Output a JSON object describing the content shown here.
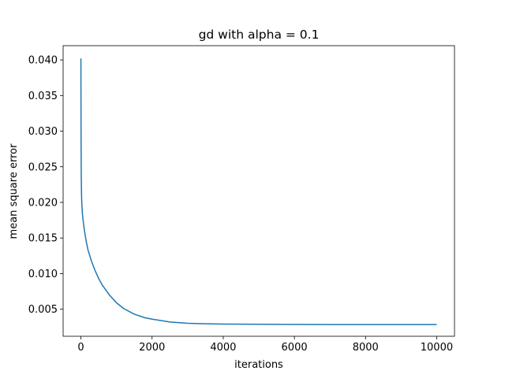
{
  "chart_data": {
    "type": "line",
    "title": "gd with alpha = 0.1",
    "xlabel": "iterations",
    "ylabel": "mean square error",
    "xlim": [
      -500,
      10500
    ],
    "ylim": [
      0.0012,
      0.042
    ],
    "xticks": [
      0,
      2000,
      4000,
      6000,
      8000,
      10000
    ],
    "xtick_labels": [
      "0",
      "2000",
      "4000",
      "6000",
      "8000",
      "10000"
    ],
    "yticks": [
      0.005,
      0.01,
      0.015,
      0.02,
      0.025,
      0.03,
      0.035,
      0.04
    ],
    "ytick_labels": [
      "0.005",
      "0.010",
      "0.015",
      "0.020",
      "0.025",
      "0.030",
      "0.035",
      "0.040"
    ],
    "grid": false,
    "series": [
      {
        "color": "#1f77b4",
        "x": [
          0,
          2,
          5,
          10,
          20,
          40,
          60,
          100,
          150,
          200,
          300,
          400,
          500,
          600,
          800,
          1000,
          1200,
          1500,
          1800,
          2000,
          2500,
          3000,
          3500,
          4000,
          5000,
          6000,
          7000,
          8000,
          9000,
          10000
        ],
        "y": [
          0.0402,
          0.034,
          0.028,
          0.0235,
          0.0205,
          0.0185,
          0.0175,
          0.016,
          0.0145,
          0.0133,
          0.0117,
          0.0104,
          0.0093,
          0.0084,
          0.007,
          0.0059,
          0.0051,
          0.0043,
          0.0038,
          0.0036,
          0.0032,
          0.00303,
          0.00295,
          0.00291,
          0.00288,
          0.00286,
          0.00285,
          0.00285,
          0.00284,
          0.00284
        ]
      }
    ]
  }
}
